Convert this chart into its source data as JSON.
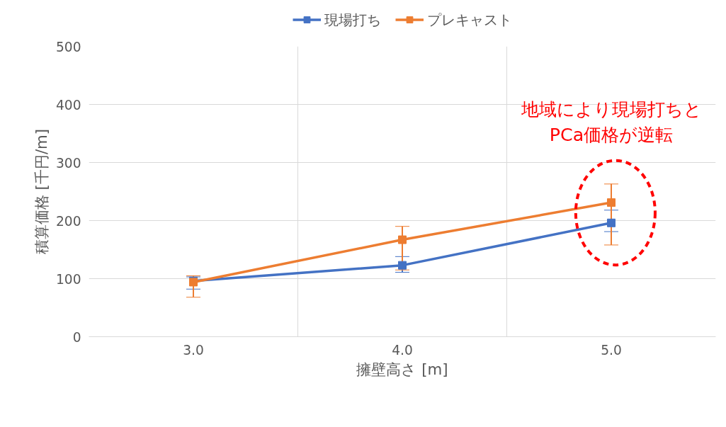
{
  "chart_data": {
    "type": "line",
    "xlabel": "擁壁高さ [m]",
    "ylabel": "積算価格 [千円/m]",
    "categories": [
      "3.0",
      "4.0",
      "5.0"
    ],
    "series": [
      {
        "name": "現場打ち",
        "color": "#4472c4",
        "values": [
          96,
          123,
          196
        ],
        "errors": [
          [
            82,
            103
          ],
          [
            111,
            138
          ],
          [
            181,
            218
          ]
        ]
      },
      {
        "name": "プレキャスト",
        "color": "#ed7d31",
        "values": [
          94,
          167,
          231
        ],
        "errors": [
          [
            68,
            105
          ],
          [
            115,
            190
          ],
          [
            158,
            263
          ]
        ]
      }
    ],
    "ylim": [
      0,
      500
    ],
    "yticks": [
      0,
      100,
      200,
      300,
      400,
      500
    ],
    "grid": true,
    "legend": "top",
    "marker": "square",
    "line_style": "solid",
    "annotations": [
      "地域により現場打ちと\nPCa価格が逆転"
    ]
  }
}
